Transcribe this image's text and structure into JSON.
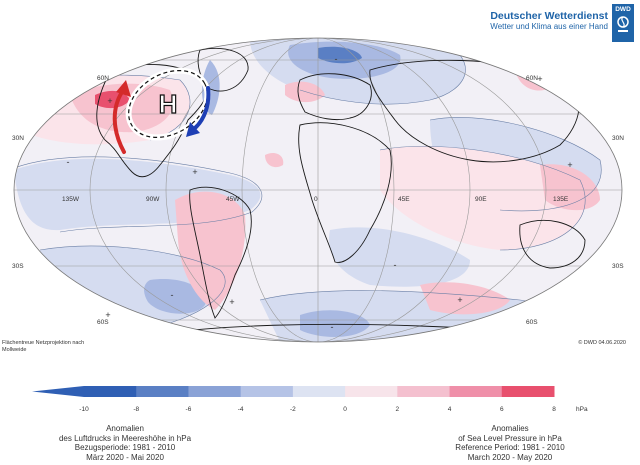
{
  "brand": {
    "name": "Deutscher Wetterdienst",
    "tagline": "Wetter und Klima aus einer Hand",
    "logo_abbr": "DWD"
  },
  "map": {
    "lat_labels": {
      "n60_left": "60N",
      "n60_right": "60N",
      "n30_left": "30N",
      "n30_right": "30N",
      "s30_left": "30S",
      "s30_right": "30S",
      "s60_left": "60S",
      "s60_right": "60S"
    },
    "lon_labels": {
      "w135": "135W",
      "w90": "90W",
      "w45": "45W",
      "e0": "0",
      "e45": "45E",
      "e90": "90E",
      "e135": "135E"
    },
    "high_symbol": "H",
    "plus_marker": "+",
    "minus_marker": "-",
    "colors": {
      "strong_positive": "#e8506e",
      "positive": "#f7c3cf",
      "weak_positive": "#fbe4ea",
      "neutral": "#f2f0f6",
      "weak_negative": "#d5dcf0",
      "negative": "#a9b9e2",
      "strong_negative": "#5a7fc4",
      "arrow_warm": "#d42a2a",
      "arrow_cold": "#1e3fb4"
    }
  },
  "projection_note": "Flächentreue Netzprojektion nach Mollweide",
  "copyright": "© DWD 04.06.2020",
  "colorbar": {
    "ticks": [
      "-10",
      "-8",
      "-6",
      "-4",
      "-2",
      "0",
      "2",
      "4",
      "6",
      "8"
    ],
    "unit": "hPa",
    "colors": [
      "#2f5fb4",
      "#5a7fc4",
      "#8aa2d6",
      "#b5c3e6",
      "#dde3f2",
      "#f7e4ea",
      "#f4c0cf",
      "#ef8fa9",
      "#e8506e"
    ]
  },
  "caption_de": {
    "line1": "Anomalien",
    "line2": "des Luftdrucks in Meereshöhe in hPa",
    "line3": "Bezugsperiode: 1981 - 2010",
    "line4": "März 2020 - Mai 2020"
  },
  "caption_en": {
    "line1": "Anomalies",
    "line2": "of Sea Level Pressure in hPa",
    "line3": "Reference Period: 1981 - 2010",
    "line4": "March 2020 - May 2020"
  }
}
